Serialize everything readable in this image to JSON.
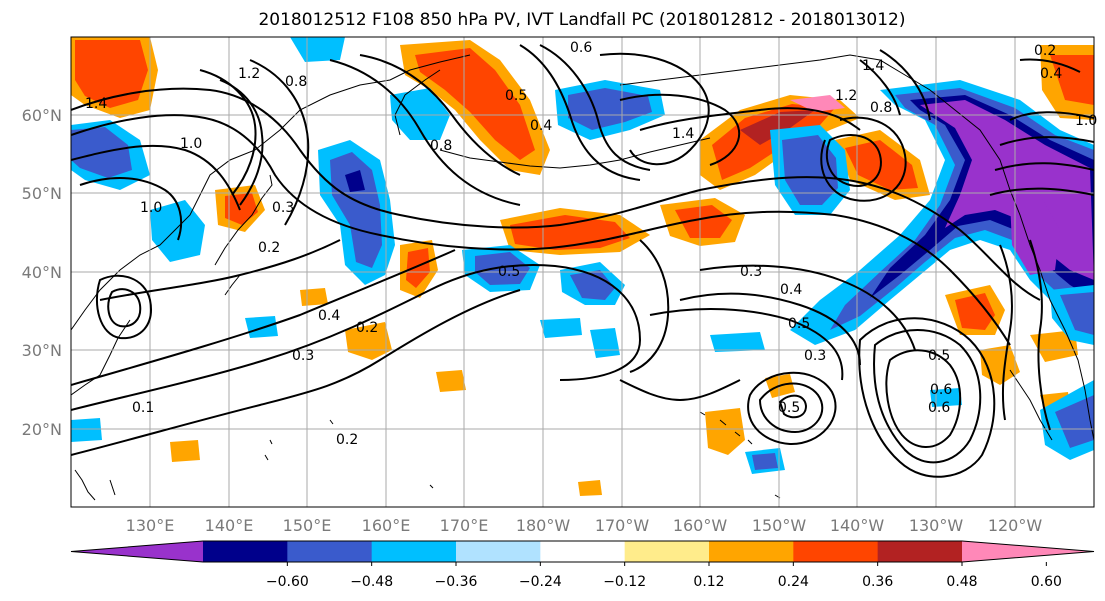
{
  "title": "2018012512 F108 850 hPa PV, IVT Landfall PC (2018012812 - 2018013012)",
  "map": {
    "lat_labels": [
      "60°N",
      "50°N",
      "40°N",
      "30°N",
      "20°N"
    ],
    "lon_labels": [
      "130°E",
      "140°E",
      "150°E",
      "160°E",
      "170°E",
      "180°W",
      "170°W",
      "160°W",
      "150°W",
      "140°W",
      "130°W",
      "120°W"
    ],
    "contour_labels": [
      "1.2",
      "0.8",
      "1.4",
      "1.0",
      "1.0",
      "0.8",
      "0.3",
      "0.2",
      "0.4",
      "0.3",
      "0.2",
      "0.2",
      "0.1",
      "0.5",
      "0.4",
      "0.5",
      "0.3",
      "0.4",
      "0.5",
      "0.3",
      "0.5",
      "0.6",
      "0.6",
      "0.5",
      "1.4",
      "1.2",
      "0.8",
      "0.6",
      "0.4",
      "1.0",
      "1.4",
      "0.2"
    ]
  },
  "colorbar": {
    "tick_labels": [
      "−0.60",
      "−0.48",
      "−0.36",
      "−0.24",
      "−0.12",
      "0.12",
      "0.24",
      "0.36",
      "0.48",
      "0.60"
    ],
    "colors": [
      "#9932cc",
      "#00008b",
      "#3a5bcc",
      "#00bfff",
      "#b0e2ff",
      "#ffffff",
      "#ffec8b",
      "#ffa500",
      "#ff4500",
      "#b22222",
      "#ff88b8"
    ]
  }
}
